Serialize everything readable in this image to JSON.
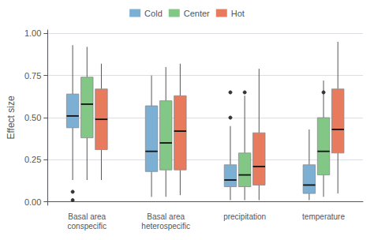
{
  "chart_data": {
    "type": "boxplot",
    "ylabel": "Effect size",
    "categories": [
      "Basal area\nconspecific",
      "Basal area\nheterospecific",
      "precipitation",
      "temperature"
    ],
    "series": [
      {
        "name": "Cold",
        "color": "#7BAFD4",
        "values": [
          {
            "whislo": 0.13,
            "q1": 0.44,
            "median": 0.51,
            "q3": 0.64,
            "whishi": 0.93,
            "fliers_lo": [
              0.06,
              0.01
            ],
            "fliers_hi": []
          },
          {
            "whislo": 0.03,
            "q1": 0.18,
            "median": 0.3,
            "q3": 0.57,
            "whishi": 0.75,
            "fliers_lo": [],
            "fliers_hi": []
          },
          {
            "whislo": 0.01,
            "q1": 0.09,
            "median": 0.13,
            "q3": 0.22,
            "whishi": 0.45,
            "fliers_lo": [],
            "fliers_hi": [
              0.5,
              0.65
            ]
          },
          {
            "whislo": 0.01,
            "q1": 0.05,
            "median": 0.1,
            "q3": 0.22,
            "whishi": 0.43,
            "fliers_lo": [],
            "fliers_hi": []
          }
        ]
      },
      {
        "name": "Center",
        "color": "#82C785",
        "values": [
          {
            "whislo": 0.13,
            "q1": 0.38,
            "median": 0.58,
            "q3": 0.74,
            "whishi": 0.92,
            "fliers_lo": [],
            "fliers_hi": []
          },
          {
            "whislo": 0.03,
            "q1": 0.19,
            "median": 0.35,
            "q3": 0.6,
            "whishi": 0.8,
            "fliers_lo": [],
            "fliers_hi": []
          },
          {
            "whislo": 0.01,
            "q1": 0.09,
            "median": 0.16,
            "q3": 0.29,
            "whishi": 0.63,
            "fliers_lo": [],
            "fliers_hi": [
              0.65
            ]
          },
          {
            "whislo": 0.03,
            "q1": 0.16,
            "median": 0.3,
            "q3": 0.5,
            "whishi": 0.72,
            "fliers_lo": [],
            "fliers_hi": [
              0.65
            ]
          }
        ]
      },
      {
        "name": "Hot",
        "color": "#E87A5D",
        "values": [
          {
            "whislo": 0.13,
            "q1": 0.31,
            "median": 0.49,
            "q3": 0.67,
            "whishi": 0.82,
            "fliers_lo": [],
            "fliers_hi": []
          },
          {
            "whislo": 0.04,
            "q1": 0.19,
            "median": 0.42,
            "q3": 0.63,
            "whishi": 0.82,
            "fliers_lo": [],
            "fliers_hi": []
          },
          {
            "whislo": 0.01,
            "q1": 0.1,
            "median": 0.21,
            "q3": 0.41,
            "whishi": 0.79,
            "fliers_lo": [],
            "fliers_hi": []
          },
          {
            "whislo": 0.05,
            "q1": 0.29,
            "median": 0.43,
            "q3": 0.67,
            "whishi": 0.95,
            "fliers_lo": [],
            "fliers_hi": []
          }
        ]
      }
    ],
    "ylim": [
      -0.02,
      1.02
    ],
    "yticks": [
      {
        "value": 0,
        "label": "0.00"
      },
      {
        "value": 0.25,
        "label": "0.25"
      },
      {
        "value": 0.5,
        "label": "0.50"
      },
      {
        "value": 0.75,
        "label": "0.75"
      },
      {
        "value": 1,
        "label": "1.00"
      }
    ],
    "grid": true,
    "legend": "top"
  }
}
